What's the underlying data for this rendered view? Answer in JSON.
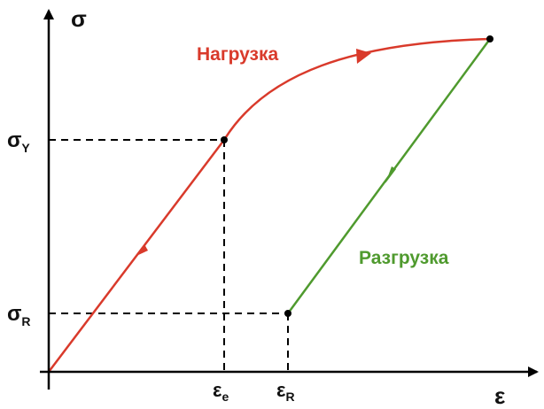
{
  "axes": {
    "y_label": "σ",
    "x_label": "ε"
  },
  "ticks": {
    "sigma_y": {
      "main": "σ",
      "sub": "Y"
    },
    "sigma_r": {
      "main": "σ",
      "sub": "R"
    },
    "eps_e": {
      "main": "ε",
      "sub": "e"
    },
    "eps_r": {
      "main": "ε",
      "sub": "R"
    }
  },
  "curves": {
    "loading": {
      "label": "Нагрузка",
      "color": "#d93a2b"
    },
    "unloading": {
      "label": "Разгрузка",
      "color": "#4f9a2e"
    }
  },
  "colors": {
    "axis": "#000000",
    "guides": "#000000"
  }
}
